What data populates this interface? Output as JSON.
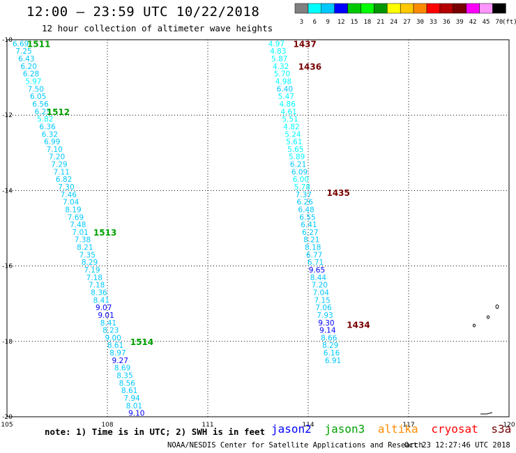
{
  "header": {
    "title": "12:00 – 23:59 UTC 10/22/2018",
    "subtitle": "12 hour collection of altimeter wave heights"
  },
  "colorbar": {
    "levels": [
      "3",
      "6",
      "9",
      "12",
      "15",
      "18",
      "21",
      "24",
      "27",
      "30",
      "33",
      "36",
      "39",
      "42",
      "45",
      "70"
    ],
    "colors": [
      "#808080",
      "#00ffff",
      "#00c8ff",
      "#0000ff",
      "#00c800",
      "#00ff00",
      "#009600",
      "#ffff00",
      "#ffc800",
      "#ff8c00",
      "#ff0000",
      "#b40000",
      "#780000",
      "#ff00ff",
      "#ff96ff",
      "#000000"
    ],
    "unit": "(ft)"
  },
  "footer": {
    "note": "note: 1) Time is in UTC; 2) SWH is in feet",
    "satellites": [
      {
        "name": "jason2",
        "color": "#0000ff"
      },
      {
        "name": "jason3",
        "color": "#00a000"
      },
      {
        "name": "altika",
        "color": "#ff8c00"
      },
      {
        "name": "cryosat",
        "color": "#ff0000"
      },
      {
        "name": "s3a",
        "color": "#780000"
      }
    ],
    "credit": "NOAA/NESDIS Center for Satellite Applications and Research",
    "timestamp": "Oct 23 12:27:46 UTC 2018"
  },
  "chart_data": {
    "type": "scatter",
    "title": "12 hour collection of altimeter wave heights",
    "xlim": [
      105,
      120
    ],
    "ylim": [
      -20,
      -10
    ],
    "x_ticks": [
      {
        "value": 105,
        "label": "105"
      },
      {
        "value": 108,
        "label": "108"
      },
      {
        "value": 111,
        "label": "111"
      },
      {
        "value": 114,
        "label": "114"
      },
      {
        "value": 117,
        "label": "117"
      },
      {
        "value": 120,
        "label": "120"
      }
    ],
    "y_ticks": [
      {
        "value": -10,
        "label": "-10"
      },
      {
        "value": -12,
        "label": "-12"
      },
      {
        "value": -14,
        "label": "-14"
      },
      {
        "value": -16,
        "label": "-16"
      },
      {
        "value": -18,
        "label": "-18"
      },
      {
        "value": -20,
        "label": "-20"
      }
    ],
    "grid": true,
    "series": [
      {
        "name": "jason3",
        "color": "#00a000",
        "points": [
          {
            "x": 105.41,
            "y": -10.1,
            "v": "6.69"
          },
          {
            "x": 105.5,
            "y": -10.3,
            "v": "7.25"
          },
          {
            "x": 105.58,
            "y": -10.5,
            "v": "6.43"
          },
          {
            "x": 105.65,
            "y": -10.7,
            "v": "6.20"
          },
          {
            "x": 105.72,
            "y": -10.9,
            "v": "6.28"
          },
          {
            "x": 105.79,
            "y": -11.1,
            "v": "5.97"
          },
          {
            "x": 105.86,
            "y": -11.3,
            "v": "7.50"
          },
          {
            "x": 105.93,
            "y": -11.5,
            "v": "6.05"
          },
          {
            "x": 106.0,
            "y": -11.7,
            "v": "6.56"
          },
          {
            "x": 106.07,
            "y": -11.9,
            "v": "6.25"
          },
          {
            "x": 106.14,
            "y": -12.1,
            "v": "5.82"
          },
          {
            "x": 106.21,
            "y": -12.3,
            "v": "6.36"
          },
          {
            "x": 106.28,
            "y": -12.5,
            "v": "6.32"
          },
          {
            "x": 106.35,
            "y": -12.7,
            "v": "6.99"
          },
          {
            "x": 106.42,
            "y": -12.9,
            "v": "7.10"
          },
          {
            "x": 106.49,
            "y": -13.1,
            "v": "7.20"
          },
          {
            "x": 106.56,
            "y": -13.3,
            "v": "7.29"
          },
          {
            "x": 106.63,
            "y": -13.5,
            "v": "7.11"
          },
          {
            "x": 106.7,
            "y": -13.7,
            "v": "6.82"
          },
          {
            "x": 106.77,
            "y": -13.9,
            "v": "7.30"
          },
          {
            "x": 106.84,
            "y": -14.1,
            "v": "7.46"
          },
          {
            "x": 106.91,
            "y": -14.3,
            "v": "7.04"
          },
          {
            "x": 106.98,
            "y": -14.5,
            "v": "8.19"
          },
          {
            "x": 107.05,
            "y": -14.7,
            "v": "7.69"
          },
          {
            "x": 107.12,
            "y": -14.9,
            "v": "7.48"
          },
          {
            "x": 107.19,
            "y": -15.1,
            "v": "7.01"
          },
          {
            "x": 107.26,
            "y": -15.3,
            "v": "7.38"
          },
          {
            "x": 107.33,
            "y": -15.5,
            "v": "8.21"
          },
          {
            "x": 107.4,
            "y": -15.7,
            "v": "7.35"
          },
          {
            "x": 107.47,
            "y": -15.9,
            "v": "8.29"
          },
          {
            "x": 107.54,
            "y": -16.1,
            "v": "7.19"
          },
          {
            "x": 107.61,
            "y": -16.3,
            "v": "7.18"
          },
          {
            "x": 107.68,
            "y": -16.5,
            "v": "7.18"
          },
          {
            "x": 107.75,
            "y": -16.7,
            "v": "8.36"
          },
          {
            "x": 107.82,
            "y": -16.9,
            "v": "8.41"
          },
          {
            "x": 107.89,
            "y": -17.1,
            "v": "9.07"
          },
          {
            "x": 107.96,
            "y": -17.3,
            "v": "9.01"
          },
          {
            "x": 108.03,
            "y": -17.5,
            "v": "8.41"
          },
          {
            "x": 108.1,
            "y": -17.7,
            "v": "8.23"
          },
          {
            "x": 108.17,
            "y": -17.9,
            "v": "9.00"
          },
          {
            "x": 108.24,
            "y": -18.1,
            "v": "8.61"
          },
          {
            "x": 108.31,
            "y": -18.3,
            "v": "8.97"
          },
          {
            "x": 108.38,
            "y": -18.5,
            "v": "9.27"
          },
          {
            "x": 108.45,
            "y": -18.7,
            "v": "8.69"
          },
          {
            "x": 108.52,
            "y": -18.9,
            "v": "8.35"
          },
          {
            "x": 108.59,
            "y": -19.1,
            "v": "8.56"
          },
          {
            "x": 108.66,
            "y": -19.3,
            "v": "8.61"
          },
          {
            "x": 108.73,
            "y": -19.5,
            "v": "7.94"
          },
          {
            "x": 108.8,
            "y": -19.7,
            "v": "8.01"
          },
          {
            "x": 108.87,
            "y": -19.9,
            "v": "9.10"
          }
        ],
        "time_labels": [
          {
            "x": 105.95,
            "y": -10.1,
            "text": "1511"
          },
          {
            "x": 106.53,
            "y": -11.9,
            "text": "1512"
          },
          {
            "x": 107.93,
            "y": -15.1,
            "text": "1513"
          },
          {
            "x": 109.03,
            "y": -18.0,
            "text": "1514"
          }
        ]
      },
      {
        "name": "s3a",
        "color": "#780000",
        "points": [
          {
            "x": 113.05,
            "y": -10.1,
            "v": "4.97"
          },
          {
            "x": 113.1,
            "y": -10.3,
            "v": "4.83"
          },
          {
            "x": 113.14,
            "y": -10.5,
            "v": "5.87"
          },
          {
            "x": 113.18,
            "y": -10.7,
            "v": "4.32"
          },
          {
            "x": 113.22,
            "y": -10.9,
            "v": "5.70"
          },
          {
            "x": 113.26,
            "y": -11.1,
            "v": "4.98"
          },
          {
            "x": 113.3,
            "y": -11.3,
            "v": "6.40"
          },
          {
            "x": 113.34,
            "y": -11.5,
            "v": "5.47"
          },
          {
            "x": 113.38,
            "y": -11.7,
            "v": "4.86"
          },
          {
            "x": 113.42,
            "y": -11.9,
            "v": "4.61"
          },
          {
            "x": 113.46,
            "y": -12.1,
            "v": "5.51"
          },
          {
            "x": 113.5,
            "y": -12.3,
            "v": "4.82"
          },
          {
            "x": 113.54,
            "y": -12.5,
            "v": "5.24"
          },
          {
            "x": 113.58,
            "y": -12.7,
            "v": "5.61"
          },
          {
            "x": 113.62,
            "y": -12.9,
            "v": "5.65"
          },
          {
            "x": 113.66,
            "y": -13.1,
            "v": "5.89"
          },
          {
            "x": 113.7,
            "y": -13.3,
            "v": "6.21"
          },
          {
            "x": 113.74,
            "y": -13.5,
            "v": "6.09"
          },
          {
            "x": 113.78,
            "y": -13.7,
            "v": "6.00"
          },
          {
            "x": 113.82,
            "y": -13.9,
            "v": "5.78"
          },
          {
            "x": 113.86,
            "y": -14.1,
            "v": "7.37"
          },
          {
            "x": 113.9,
            "y": -14.3,
            "v": "6.26"
          },
          {
            "x": 113.94,
            "y": -14.5,
            "v": "6.48"
          },
          {
            "x": 113.98,
            "y": -14.7,
            "v": "6.55"
          },
          {
            "x": 114.02,
            "y": -14.9,
            "v": "6.41"
          },
          {
            "x": 114.06,
            "y": -15.1,
            "v": "6.27"
          },
          {
            "x": 114.1,
            "y": -15.3,
            "v": "8.21"
          },
          {
            "x": 114.14,
            "y": -15.5,
            "v": "8.18"
          },
          {
            "x": 114.18,
            "y": -15.7,
            "v": "6.77"
          },
          {
            "x": 114.22,
            "y": -15.9,
            "v": "6.71"
          },
          {
            "x": 114.26,
            "y": -16.1,
            "v": "9.65"
          },
          {
            "x": 114.3,
            "y": -16.3,
            "v": "8.44"
          },
          {
            "x": 114.34,
            "y": -16.5,
            "v": "7.20"
          },
          {
            "x": 114.38,
            "y": -16.7,
            "v": "7.04"
          },
          {
            "x": 114.42,
            "y": -16.9,
            "v": "7.15"
          },
          {
            "x": 114.46,
            "y": -17.1,
            "v": "7.06"
          },
          {
            "x": 114.5,
            "y": -17.3,
            "v": "7.93"
          },
          {
            "x": 114.54,
            "y": -17.5,
            "v": "9.30"
          },
          {
            "x": 114.58,
            "y": -17.7,
            "v": "9.14"
          },
          {
            "x": 114.62,
            "y": -17.9,
            "v": "8.66"
          },
          {
            "x": 114.66,
            "y": -18.1,
            "v": "8.29"
          },
          {
            "x": 114.7,
            "y": -18.3,
            "v": "6.16"
          },
          {
            "x": 114.74,
            "y": -18.5,
            "v": "6.91"
          }
        ],
        "time_labels": [
          {
            "x": 113.9,
            "y": -10.1,
            "text": "1437"
          },
          {
            "x": 114.05,
            "y": -10.7,
            "text": "1436"
          },
          {
            "x": 114.9,
            "y": -14.05,
            "text": "1435"
          },
          {
            "x": 115.5,
            "y": -17.55,
            "text": "1434"
          }
        ]
      }
    ]
  }
}
